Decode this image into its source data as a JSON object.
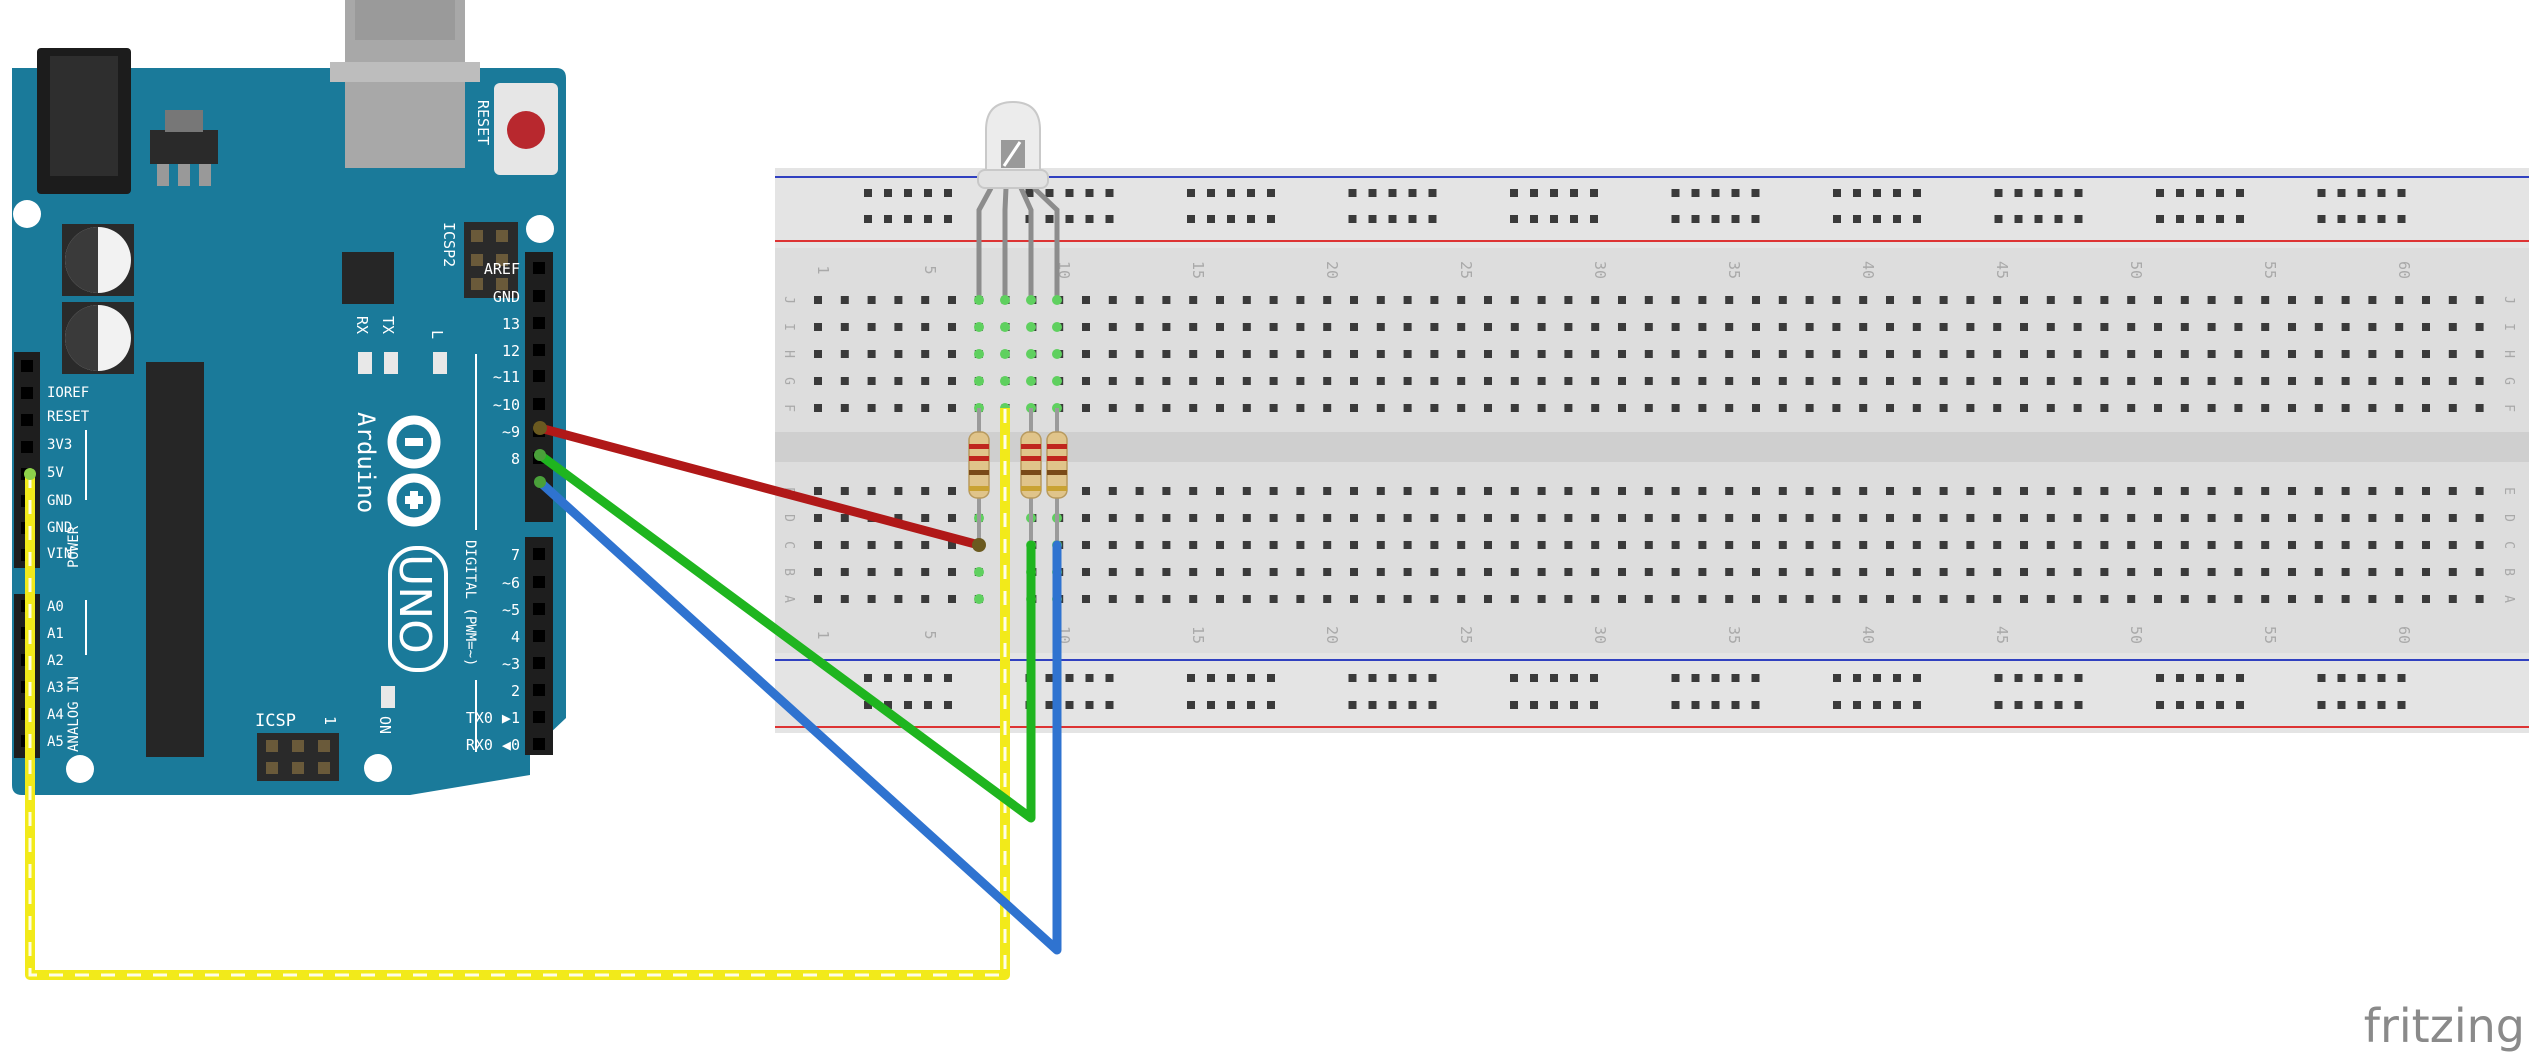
{
  "brand": "fritzing",
  "arduino": {
    "model_word": "UNO",
    "logo_text": "Arduino",
    "reset_label": "RESET",
    "icsp2_label": "ICSP2",
    "icsp_label": "ICSP",
    "icsp_num": "1",
    "on_label": "ON",
    "rx_label": "RX",
    "tx_label": "TX",
    "l_label": "L",
    "digital_group": "DIGITAL (PWM=~)",
    "power_group": "POWER",
    "analog_group": "ANALOG IN",
    "digital_pins_upper": [
      "AREF",
      "GND",
      "13",
      "12",
      "~11",
      "~10",
      "~9",
      "8"
    ],
    "digital_pins_lower": [
      "7",
      "~6",
      "~5",
      "4",
      "~3",
      "2",
      "TX0 ▶1",
      "RX0 ◀0"
    ],
    "power_pins": [
      "IOREF",
      "RESET",
      "3V3",
      "5V",
      "GND",
      "GND",
      "VIN"
    ],
    "analog_pins": [
      "A0",
      "A1",
      "A2",
      "A3",
      "A4",
      "A5"
    ]
  },
  "breadboard": {
    "row_letters_top": [
      "J",
      "I",
      "H",
      "G",
      "F"
    ],
    "row_letters_bottom": [
      "E",
      "D",
      "C",
      "B",
      "A"
    ],
    "column_numbers": [
      "1",
      "5",
      "10",
      "15",
      "20",
      "25",
      "30",
      "35",
      "40",
      "45",
      "50",
      "55",
      "60"
    ]
  },
  "colors": {
    "board": "#1a7a9a",
    "board_dark": "#12617c",
    "wire_red": "#b01818",
    "wire_green": "#1fb51f",
    "wire_blue": "#2f73d0",
    "wire_yellow": "#f2ea1a",
    "breadboard": "#dcdcdc",
    "rail_red": "#d33",
    "rail_blue": "#3040c0"
  }
}
